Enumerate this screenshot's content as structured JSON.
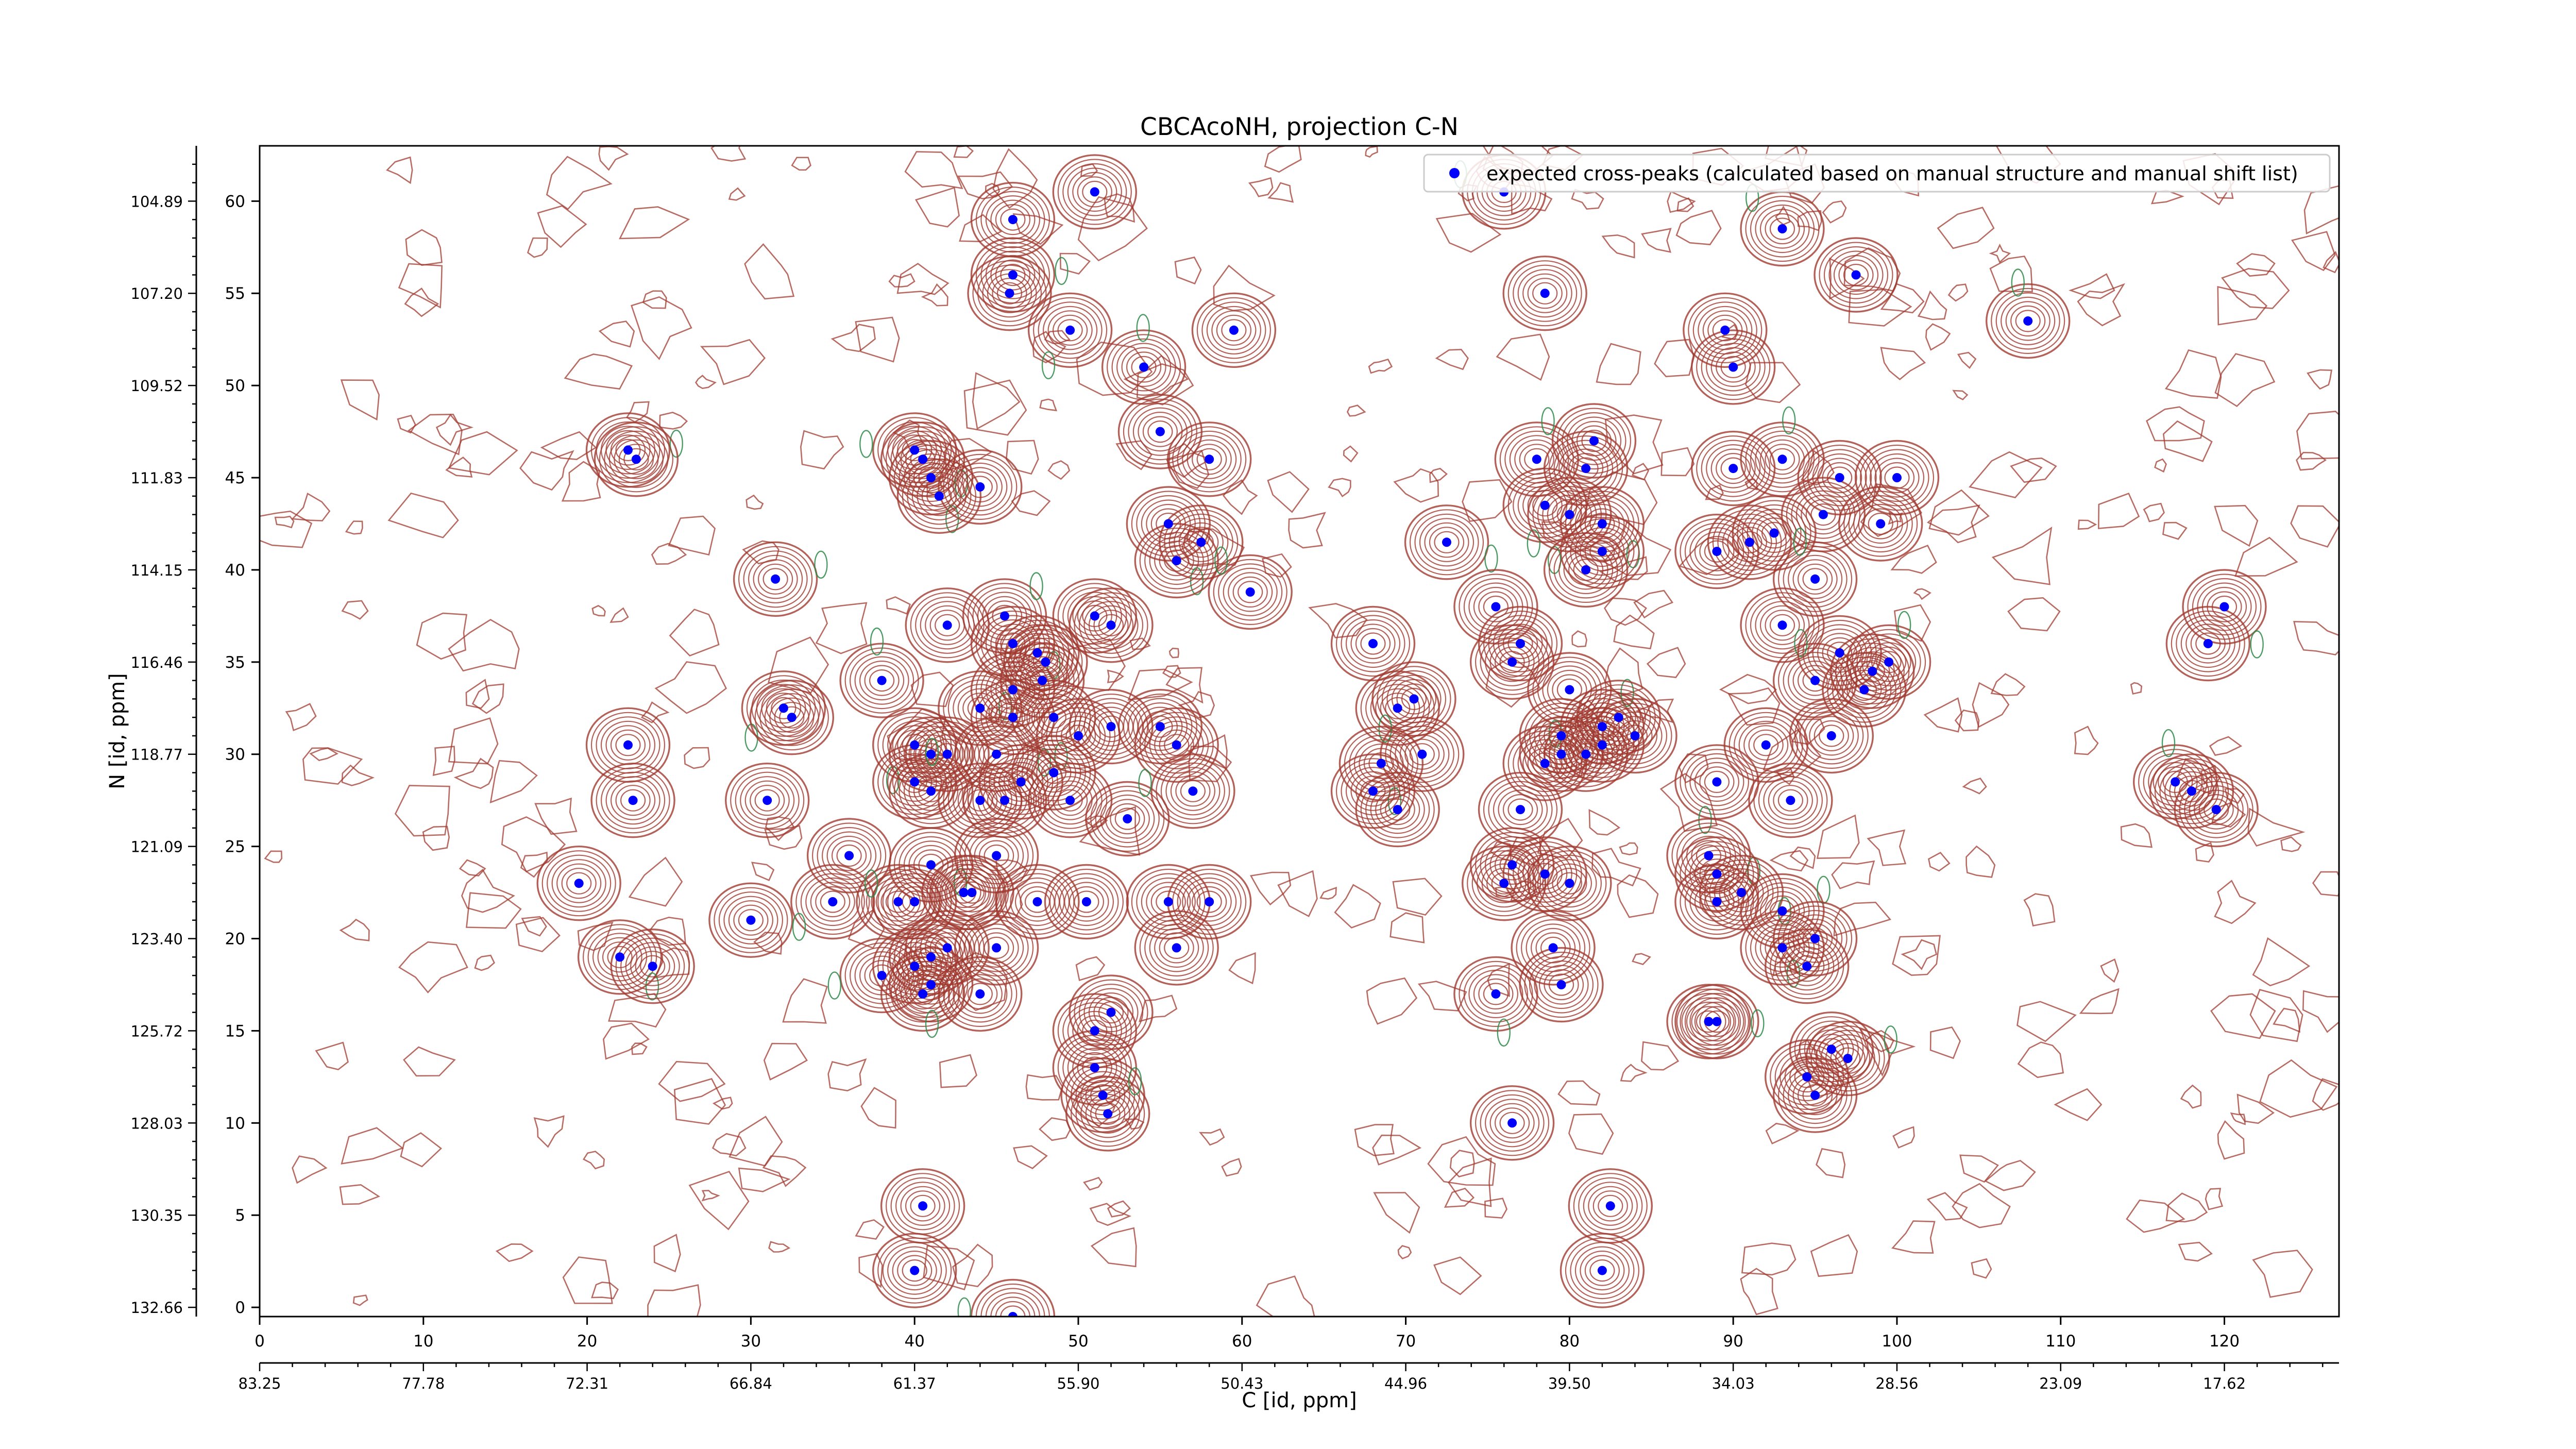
{
  "chart_data": {
    "type": "scatter",
    "title": "CBCAcoNH, projection C-N",
    "xlabel": "C [id, ppm]",
    "ylabel": "N [id, ppm]",
    "xlim": [
      0,
      127
    ],
    "ylim": [
      -0.5,
      63
    ],
    "x_ticks": [
      "0",
      "10",
      "20",
      "30",
      "40",
      "50",
      "60",
      "70",
      "80",
      "90",
      "100",
      "110",
      "120"
    ],
    "x_tick_values": [
      0,
      10,
      20,
      30,
      40,
      50,
      60,
      70,
      80,
      90,
      100,
      110,
      120
    ],
    "x2_ticks": [
      "83.25",
      "77.78",
      "72.31",
      "66.84",
      "61.37",
      "55.90",
      "50.43",
      "44.96",
      "39.50",
      "34.03",
      "28.56",
      "23.09",
      "17.62"
    ],
    "y_ticks": [
      "0",
      "5",
      "10",
      "15",
      "20",
      "25",
      "30",
      "35",
      "40",
      "45",
      "50",
      "55",
      "60"
    ],
    "y_tick_values": [
      0,
      5,
      10,
      15,
      20,
      25,
      30,
      35,
      40,
      45,
      50,
      55,
      60
    ],
    "y2_ticks": [
      "132.66",
      "130.35",
      "128.03",
      "125.72",
      "123.40",
      "121.09",
      "118.77",
      "116.46",
      "114.15",
      "111.83",
      "109.52",
      "107.20",
      "104.89"
    ],
    "legend": {
      "label": "expected cross-peaks (calculated based on manual structure and manual shift list)",
      "placement": "top-right"
    },
    "grid": false,
    "colors": {
      "marker": "#0000ff",
      "contour_positive": "#a0392f",
      "contour_negative": "#2e8b4a",
      "axis": "#000000"
    },
    "series": [
      {
        "name": "expected cross-peaks (calculated based on manual structure and manual shift list)",
        "points": [
          [
            46.0,
            59.0
          ],
          [
            51.0,
            60.5
          ],
          [
            46.0,
            56.0
          ],
          [
            45.8,
            55.0
          ],
          [
            49.5,
            53.0
          ],
          [
            54.0,
            51.0
          ],
          [
            59.5,
            53.0
          ],
          [
            55.0,
            47.5
          ],
          [
            58.0,
            46.0
          ],
          [
            40.0,
            46.5
          ],
          [
            40.5,
            46.0
          ],
          [
            41.0,
            45.0
          ],
          [
            44.0,
            44.5
          ],
          [
            41.5,
            44.0
          ],
          [
            22.5,
            46.5
          ],
          [
            23.0,
            46.0
          ],
          [
            55.5,
            42.5
          ],
          [
            57.5,
            41.5
          ],
          [
            56.0,
            40.5
          ],
          [
            60.5,
            38.8
          ],
          [
            31.5,
            39.5
          ],
          [
            42.0,
            37.0
          ],
          [
            45.5,
            37.5
          ],
          [
            51.0,
            37.5
          ],
          [
            52.0,
            37.0
          ],
          [
            46.0,
            36.0
          ],
          [
            47.5,
            35.5
          ],
          [
            48.0,
            35.0
          ],
          [
            47.8,
            34.0
          ],
          [
            46.0,
            33.5
          ],
          [
            44.0,
            32.5
          ],
          [
            46.0,
            32.0
          ],
          [
            48.5,
            32.0
          ],
          [
            52.0,
            31.5
          ],
          [
            40.0,
            30.5
          ],
          [
            41.0,
            30.0
          ],
          [
            42.0,
            30.0
          ],
          [
            45.0,
            30.0
          ],
          [
            50.0,
            31.0
          ],
          [
            55.0,
            31.5
          ],
          [
            56.0,
            30.5
          ],
          [
            38.0,
            34.0
          ],
          [
            32.0,
            32.5
          ],
          [
            32.5,
            32.0
          ],
          [
            22.5,
            30.5
          ],
          [
            22.8,
            27.5
          ],
          [
            31.0,
            27.5
          ],
          [
            40.0,
            28.5
          ],
          [
            41.0,
            28.0
          ],
          [
            44.0,
            27.5
          ],
          [
            45.5,
            27.5
          ],
          [
            49.5,
            27.5
          ],
          [
            53.0,
            26.5
          ],
          [
            57.0,
            28.0
          ],
          [
            46.5,
            28.5
          ],
          [
            48.5,
            29.0
          ],
          [
            36.0,
            24.5
          ],
          [
            41.0,
            24.0
          ],
          [
            45.0,
            24.5
          ],
          [
            35.0,
            22.0
          ],
          [
            39.0,
            22.0
          ],
          [
            40.0,
            22.0
          ],
          [
            43.0,
            22.5
          ],
          [
            43.5,
            22.5
          ],
          [
            47.5,
            22.0
          ],
          [
            50.5,
            22.0
          ],
          [
            55.5,
            22.0
          ],
          [
            58.0,
            22.0
          ],
          [
            19.5,
            23.0
          ],
          [
            30.0,
            21.0
          ],
          [
            22.0,
            19.0
          ],
          [
            24.0,
            18.5
          ],
          [
            38.0,
            18.0
          ],
          [
            40.0,
            18.5
          ],
          [
            41.0,
            19.0
          ],
          [
            42.0,
            19.5
          ],
          [
            45.0,
            19.5
          ],
          [
            40.5,
            17.0
          ],
          [
            41.0,
            17.5
          ],
          [
            44.0,
            17.0
          ],
          [
            56.0,
            19.5
          ],
          [
            52.0,
            16.0
          ],
          [
            51.0,
            15.0
          ],
          [
            51.0,
            13.0
          ],
          [
            51.5,
            11.5
          ],
          [
            51.8,
            10.5
          ],
          [
            68.0,
            36.0
          ],
          [
            70.5,
            33.0
          ],
          [
            69.5,
            32.5
          ],
          [
            71.0,
            30.0
          ],
          [
            68.5,
            29.5
          ],
          [
            68.0,
            28.0
          ],
          [
            69.5,
            27.0
          ],
          [
            72.5,
            41.5
          ],
          [
            75.5,
            38.0
          ],
          [
            77.0,
            36.0
          ],
          [
            76.5,
            35.0
          ],
          [
            80.0,
            33.5
          ],
          [
            79.5,
            31.0
          ],
          [
            82.0,
            31.5
          ],
          [
            83.0,
            32.0
          ],
          [
            84.0,
            31.0
          ],
          [
            82.0,
            30.5
          ],
          [
            79.5,
            30.0
          ],
          [
            78.5,
            29.5
          ],
          [
            81.0,
            30.0
          ],
          [
            77.0,
            27.0
          ],
          [
            76.5,
            24.0
          ],
          [
            76.0,
            23.0
          ],
          [
            78.5,
            23.5
          ],
          [
            80.0,
            23.0
          ],
          [
            79.0,
            19.5
          ],
          [
            79.5,
            17.5
          ],
          [
            75.5,
            17.0
          ],
          [
            76.5,
            10.0
          ],
          [
            82.5,
            5.5
          ],
          [
            82.0,
            2.0
          ],
          [
            40.5,
            5.5
          ],
          [
            40.0,
            2.0
          ],
          [
            46.0,
            -0.5
          ],
          [
            78.5,
            55.0
          ],
          [
            76.0,
            60.5
          ],
          [
            78.0,
            46.0
          ],
          [
            78.5,
            43.5
          ],
          [
            81.5,
            47.0
          ],
          [
            81.0,
            45.5
          ],
          [
            80.0,
            43.0
          ],
          [
            82.0,
            42.5
          ],
          [
            82.0,
            41.0
          ],
          [
            81.0,
            40.0
          ],
          [
            89.5,
            53.0
          ],
          [
            90.0,
            51.0
          ],
          [
            93.0,
            58.5
          ],
          [
            97.5,
            56.0
          ],
          [
            108.0,
            53.5
          ],
          [
            90.0,
            45.5
          ],
          [
            93.0,
            46.0
          ],
          [
            91.0,
            41.5
          ],
          [
            89.0,
            41.0
          ],
          [
            92.5,
            42.0
          ],
          [
            95.5,
            43.0
          ],
          [
            96.5,
            45.0
          ],
          [
            100.0,
            45.0
          ],
          [
            99.0,
            42.5
          ],
          [
            95.0,
            39.5
          ],
          [
            93.0,
            37.0
          ],
          [
            95.0,
            34.0
          ],
          [
            96.5,
            35.5
          ],
          [
            98.5,
            34.5
          ],
          [
            99.5,
            35.0
          ],
          [
            98.0,
            33.5
          ],
          [
            96.0,
            31.0
          ],
          [
            92.0,
            30.5
          ],
          [
            89.0,
            28.5
          ],
          [
            93.5,
            27.5
          ],
          [
            88.5,
            24.5
          ],
          [
            89.0,
            23.5
          ],
          [
            90.5,
            22.5
          ],
          [
            89.0,
            22.0
          ],
          [
            93.0,
            21.5
          ],
          [
            95.0,
            20.0
          ],
          [
            93.0,
            19.5
          ],
          [
            94.5,
            18.5
          ],
          [
            89.0,
            15.5
          ],
          [
            88.5,
            15.5
          ],
          [
            96.0,
            14.0
          ],
          [
            97.0,
            13.5
          ],
          [
            94.5,
            12.5
          ],
          [
            95.0,
            11.5
          ],
          [
            118.0,
            28.0
          ],
          [
            117.0,
            28.5
          ],
          [
            119.5,
            27.0
          ],
          [
            120.0,
            38.0
          ],
          [
            119.0,
            36.0
          ]
        ]
      }
    ]
  }
}
